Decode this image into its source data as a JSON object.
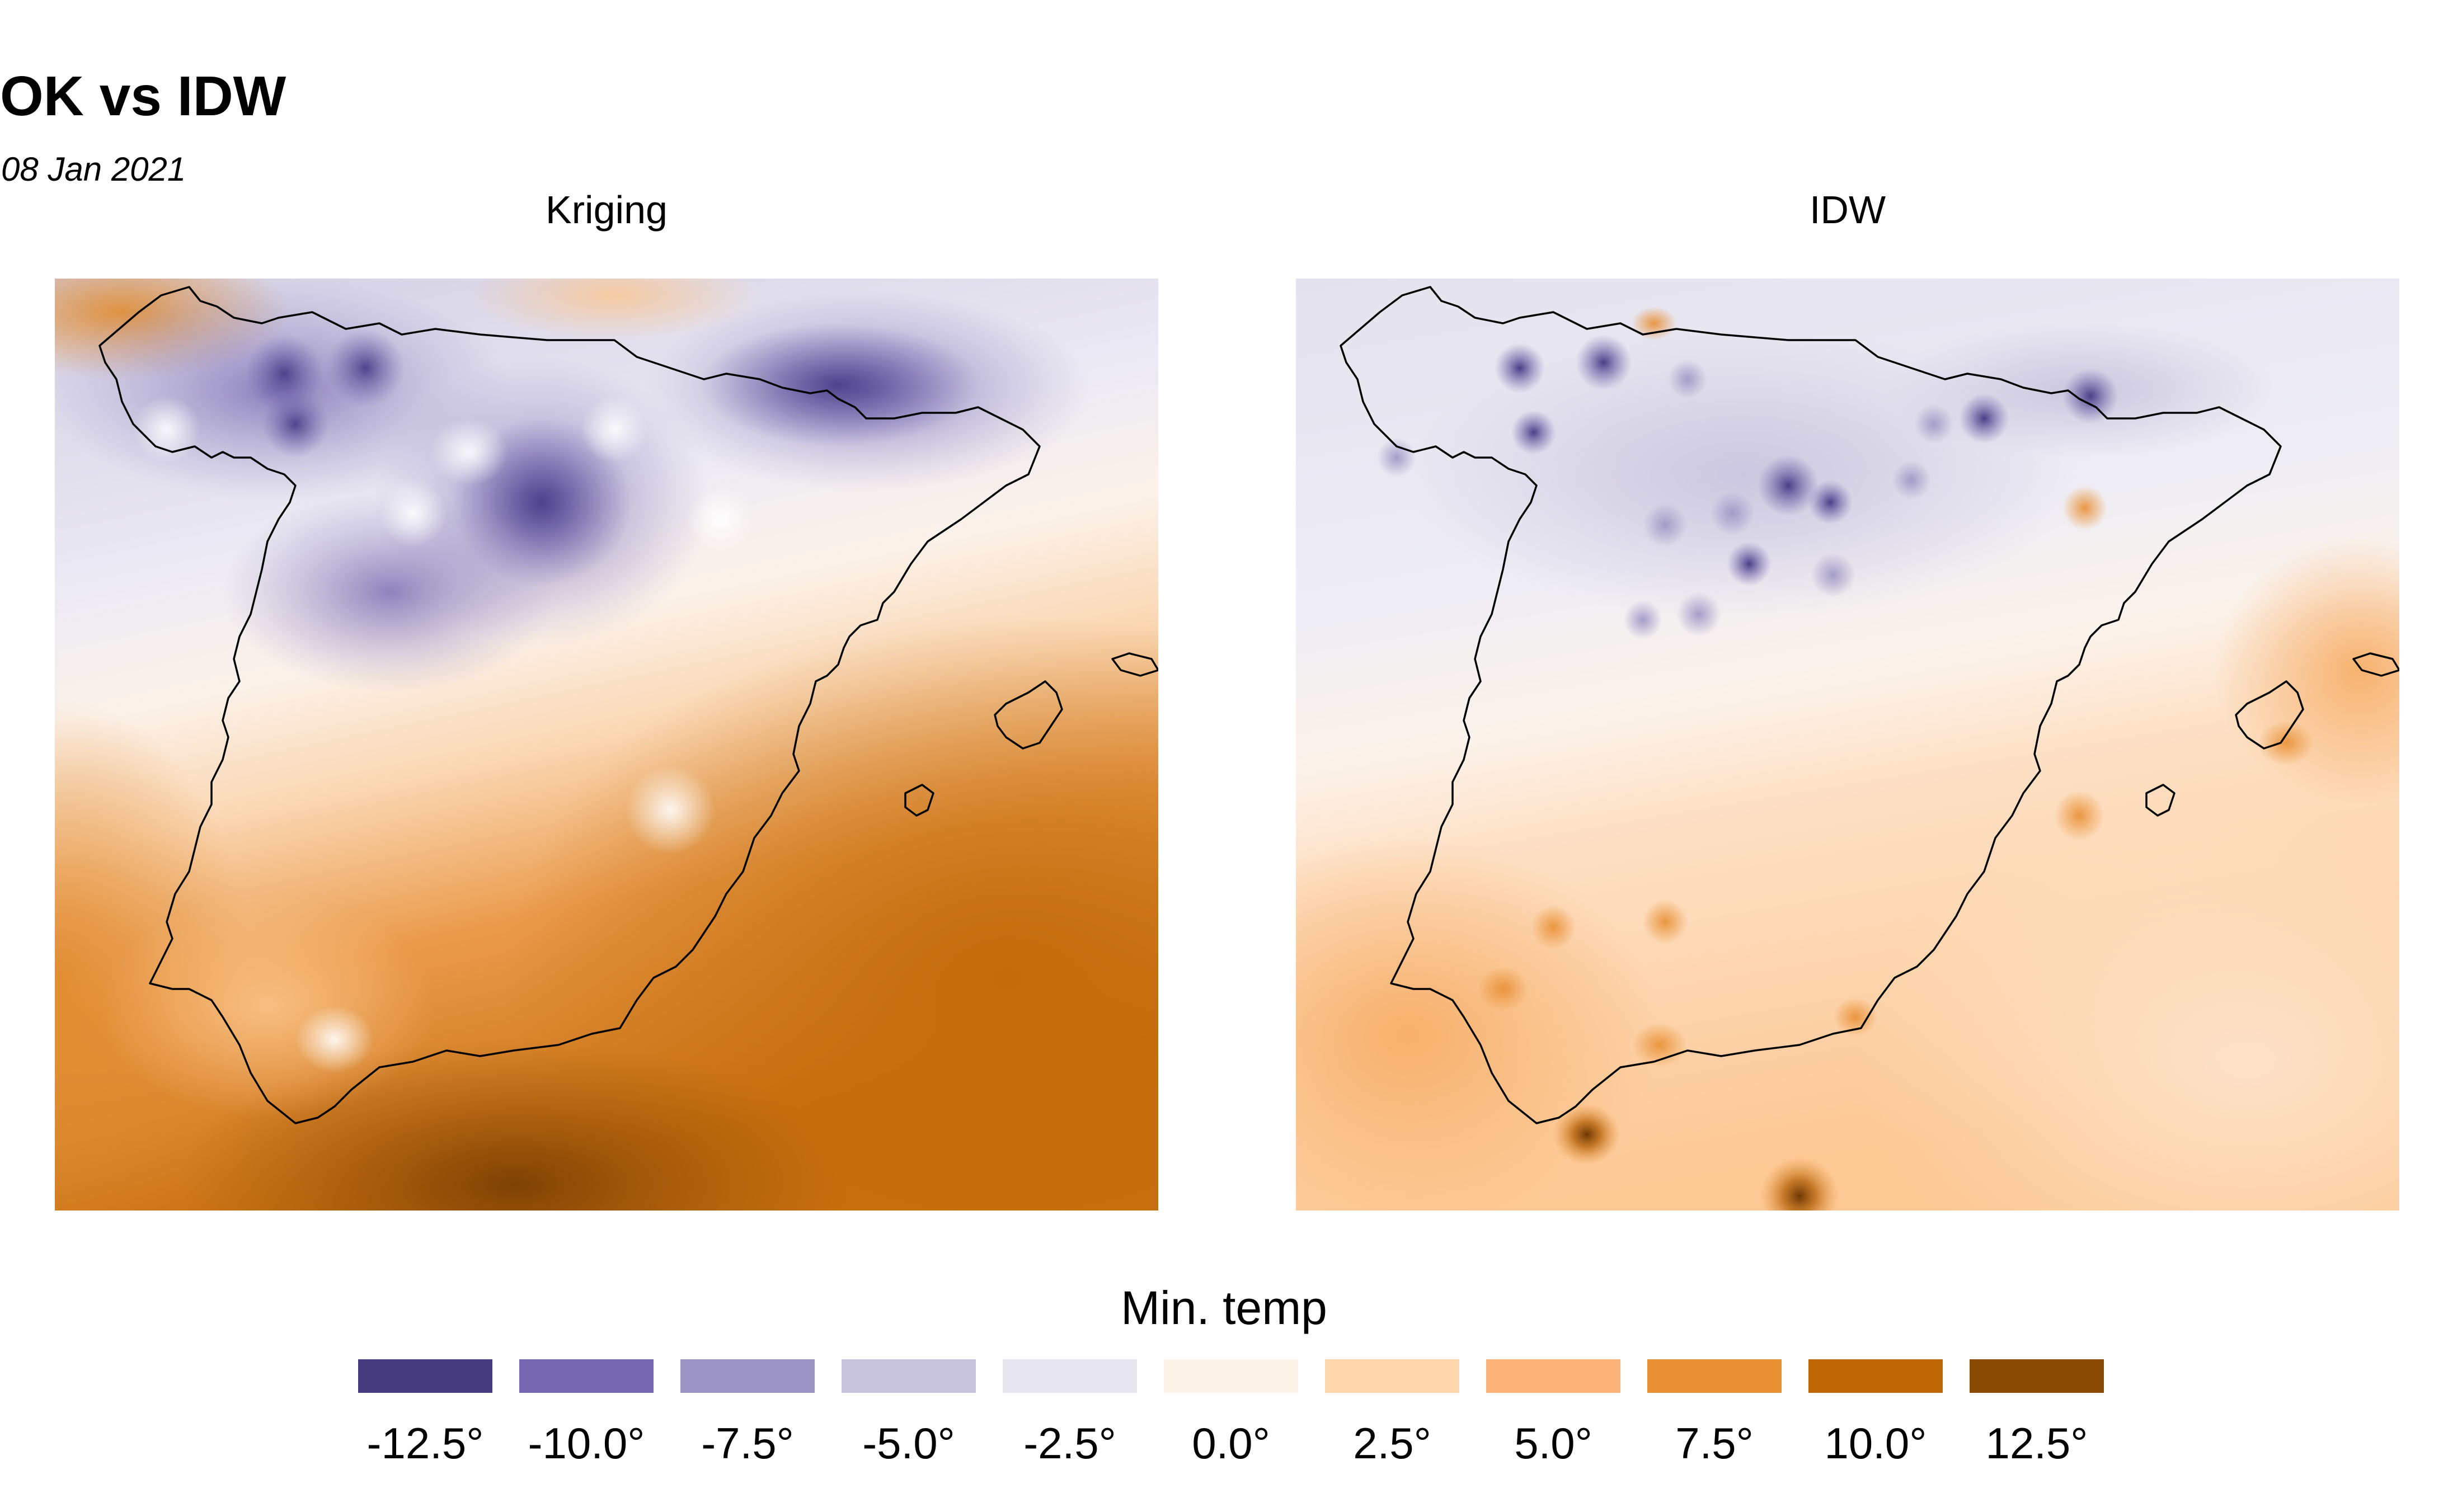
{
  "header": {
    "title": "OK vs IDW",
    "subtitle": "08 Jan 2021"
  },
  "panels": [
    {
      "title": "Kriging"
    },
    {
      "title": "IDW"
    }
  ],
  "legend": {
    "title": "Min. temp",
    "items": [
      {
        "label": "-12.5°",
        "color": "#473b7f"
      },
      {
        "label": "-10.0°",
        "color": "#7467b0"
      },
      {
        "label": "-7.5°",
        "color": "#9d95c5"
      },
      {
        "label": "-5.0°",
        "color": "#c7c3dc"
      },
      {
        "label": "-2.5°",
        "color": "#e8e6f0"
      },
      {
        "label": "0.0°",
        "color": "#fdf2e8"
      },
      {
        "label": "2.5°",
        "color": "#fdd6ae"
      },
      {
        "label": "5.0°",
        "color": "#fdb377"
      },
      {
        "label": "7.5°",
        "color": "#e98f34"
      },
      {
        "label": "10.0°",
        "color": "#bf6808"
      },
      {
        "label": "12.5°",
        "color": "#8a4a06"
      }
    ]
  }
}
